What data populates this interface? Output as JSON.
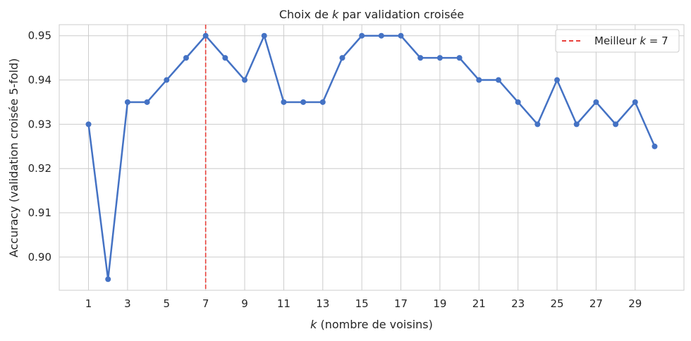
{
  "chart_data": {
    "type": "line",
    "title_pre": "Choix de ",
    "title_var": "k",
    "title_post": " par validation croisée",
    "xlabel_var": "k",
    "xlabel_post": " (nombre de voisins)",
    "ylabel": "Accuracy (validation croisée 5-fold)",
    "x": [
      1,
      2,
      3,
      4,
      5,
      6,
      7,
      8,
      9,
      10,
      11,
      12,
      13,
      14,
      15,
      16,
      17,
      18,
      19,
      20,
      21,
      22,
      23,
      24,
      25,
      26,
      27,
      28,
      29,
      30
    ],
    "series": [
      {
        "values": [
          0.93,
          0.895,
          0.935,
          0.935,
          0.94,
          0.945,
          0.95,
          0.945,
          0.94,
          0.95,
          0.935,
          0.935,
          0.935,
          0.945,
          0.95,
          0.95,
          0.95,
          0.945,
          0.945,
          0.945,
          0.94,
          0.94,
          0.935,
          0.93,
          0.94,
          0.93,
          0.935,
          0.93,
          0.935,
          0.925
        ],
        "color": "#4472c4"
      }
    ],
    "xticks": [
      1,
      3,
      5,
      7,
      9,
      11,
      13,
      15,
      17,
      19,
      21,
      23,
      25,
      27,
      29
    ],
    "yticks": [
      0.9,
      0.91,
      0.92,
      0.93,
      0.94,
      0.95
    ],
    "ytick_labels": [
      "0.90",
      "0.91",
      "0.92",
      "0.93",
      "0.94",
      "0.95"
    ],
    "xlim": [
      -0.5,
      31.5
    ],
    "ylim": [
      0.8925,
      0.9525
    ],
    "reference_line": {
      "x": 7,
      "color": "#e8413c",
      "label_pre": "Meilleur ",
      "label_var": "k",
      "label_post": " = 7"
    },
    "legend_position": "top-right",
    "grid": true
  }
}
